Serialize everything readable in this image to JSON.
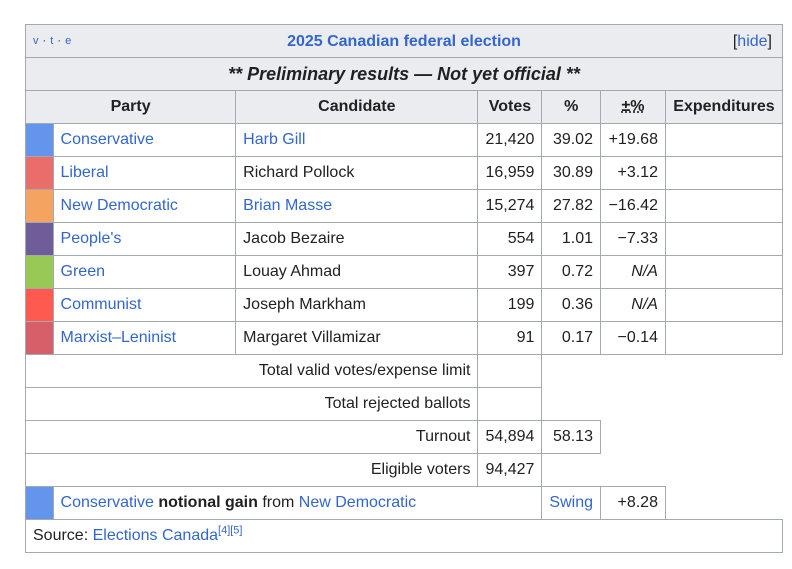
{
  "navbox": {
    "v": "v",
    "t": "t",
    "e": "e",
    "title": "2025 Canadian federal election",
    "hide_label": "hide"
  },
  "preliminary_banner": "** Preliminary results — Not yet official **",
  "headers": {
    "party": "Party",
    "candidate": "Candidate",
    "votes": "Votes",
    "pct": "%",
    "change": "±%",
    "expenditures": "Expenditures"
  },
  "rows": [
    {
      "color": "#6495ED",
      "party": "Conservative",
      "candidate": "Harb Gill",
      "candidate_link": true,
      "votes": "21,420",
      "pct": "39.02",
      "change": "+19.68",
      "expenditures": ""
    },
    {
      "color": "#EA6D6A",
      "party": "Liberal",
      "candidate": "Richard Pollock",
      "candidate_link": false,
      "votes": "16,959",
      "pct": "30.89",
      "change": "+3.12",
      "expenditures": ""
    },
    {
      "color": "#F4A460",
      "party": "New Democratic",
      "candidate": "Brian Masse",
      "candidate_link": true,
      "votes": "15,274",
      "pct": "27.82",
      "change": "−16.42",
      "expenditures": ""
    },
    {
      "color": "#6F5D9A",
      "party": "People's",
      "candidate": "Jacob Bezaire",
      "candidate_link": false,
      "votes": "554",
      "pct": "1.01",
      "change": "−7.33",
      "expenditures": ""
    },
    {
      "color": "#99C955",
      "party": "Green",
      "candidate": "Louay Ahmad",
      "candidate_link": false,
      "votes": "397",
      "pct": "0.72",
      "change": "N/A",
      "expenditures": ""
    },
    {
      "color": "#FF5A4F",
      "party": "Communist",
      "candidate": "Joseph Markham",
      "candidate_link": false,
      "votes": "199",
      "pct": "0.36",
      "change": "N/A",
      "expenditures": ""
    },
    {
      "color": "#D75F6A",
      "party": "Marxist–Leninist",
      "candidate": "Margaret Villamizar",
      "candidate_link": false,
      "votes": "91",
      "pct": "0.17",
      "change": "−0.14",
      "expenditures": ""
    }
  ],
  "totals": {
    "valid_label": "Total valid votes/expense limit",
    "rejected_label": "Total rejected ballots",
    "turnout_label": "Turnout",
    "turnout_votes": "54,894",
    "turnout_pct": "58.13",
    "eligible_label": "Eligible voters",
    "eligible_votes": "94,427"
  },
  "gain": {
    "color": "#6495ED",
    "party": "Conservative",
    "phrase": "notional gain",
    "from": "from",
    "from_party": "New Democratic",
    "swing_label": "Swing",
    "swing_value": "+8.28"
  },
  "source": {
    "label": "Source:",
    "link": "Elections Canada",
    "ref1": "[4]",
    "ref2": "[5]"
  }
}
